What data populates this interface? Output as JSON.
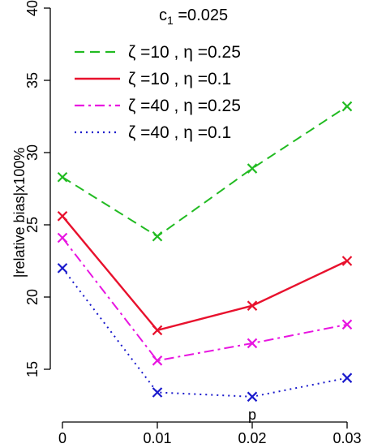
{
  "chart_data": {
    "type": "line",
    "title_main": "c",
    "title_sub": "1",
    "title_rest": " =0.025",
    "xlabel": "p",
    "ylabel": "|relative bias|x100%",
    "x": [
      0,
      0.01,
      0.02,
      0.03
    ],
    "x_tick_labels": [
      "0",
      "0.01",
      "0.02",
      "0.03"
    ],
    "ylim": [
      12.5,
      40
    ],
    "y_ticks": [
      15,
      20,
      25,
      30,
      35,
      40
    ],
    "y_tick_labels": [
      "15",
      "20",
      "25",
      "30",
      "35",
      "40"
    ],
    "legend_position": "top-right",
    "grid": false,
    "series": [
      {
        "name": "ζ =10 , η =0.25",
        "color": "#22bb22",
        "dash": "dashed",
        "values": [
          28.3,
          24.2,
          28.9,
          33.2
        ]
      },
      {
        "name": "ζ =10 , η =0.1",
        "color": "#e8112d",
        "dash": "solid",
        "values": [
          25.6,
          17.7,
          19.4,
          22.5
        ]
      },
      {
        "name": "ζ =40 , η =0.25",
        "color": "#e815e0",
        "dash": "dashdot",
        "values": [
          24.1,
          15.6,
          16.8,
          18.1
        ]
      },
      {
        "name": "ζ =40 , η =0.1",
        "color": "#1a1acc",
        "dash": "dotted",
        "values": [
          22.0,
          13.4,
          13.1,
          14.4
        ]
      }
    ]
  }
}
